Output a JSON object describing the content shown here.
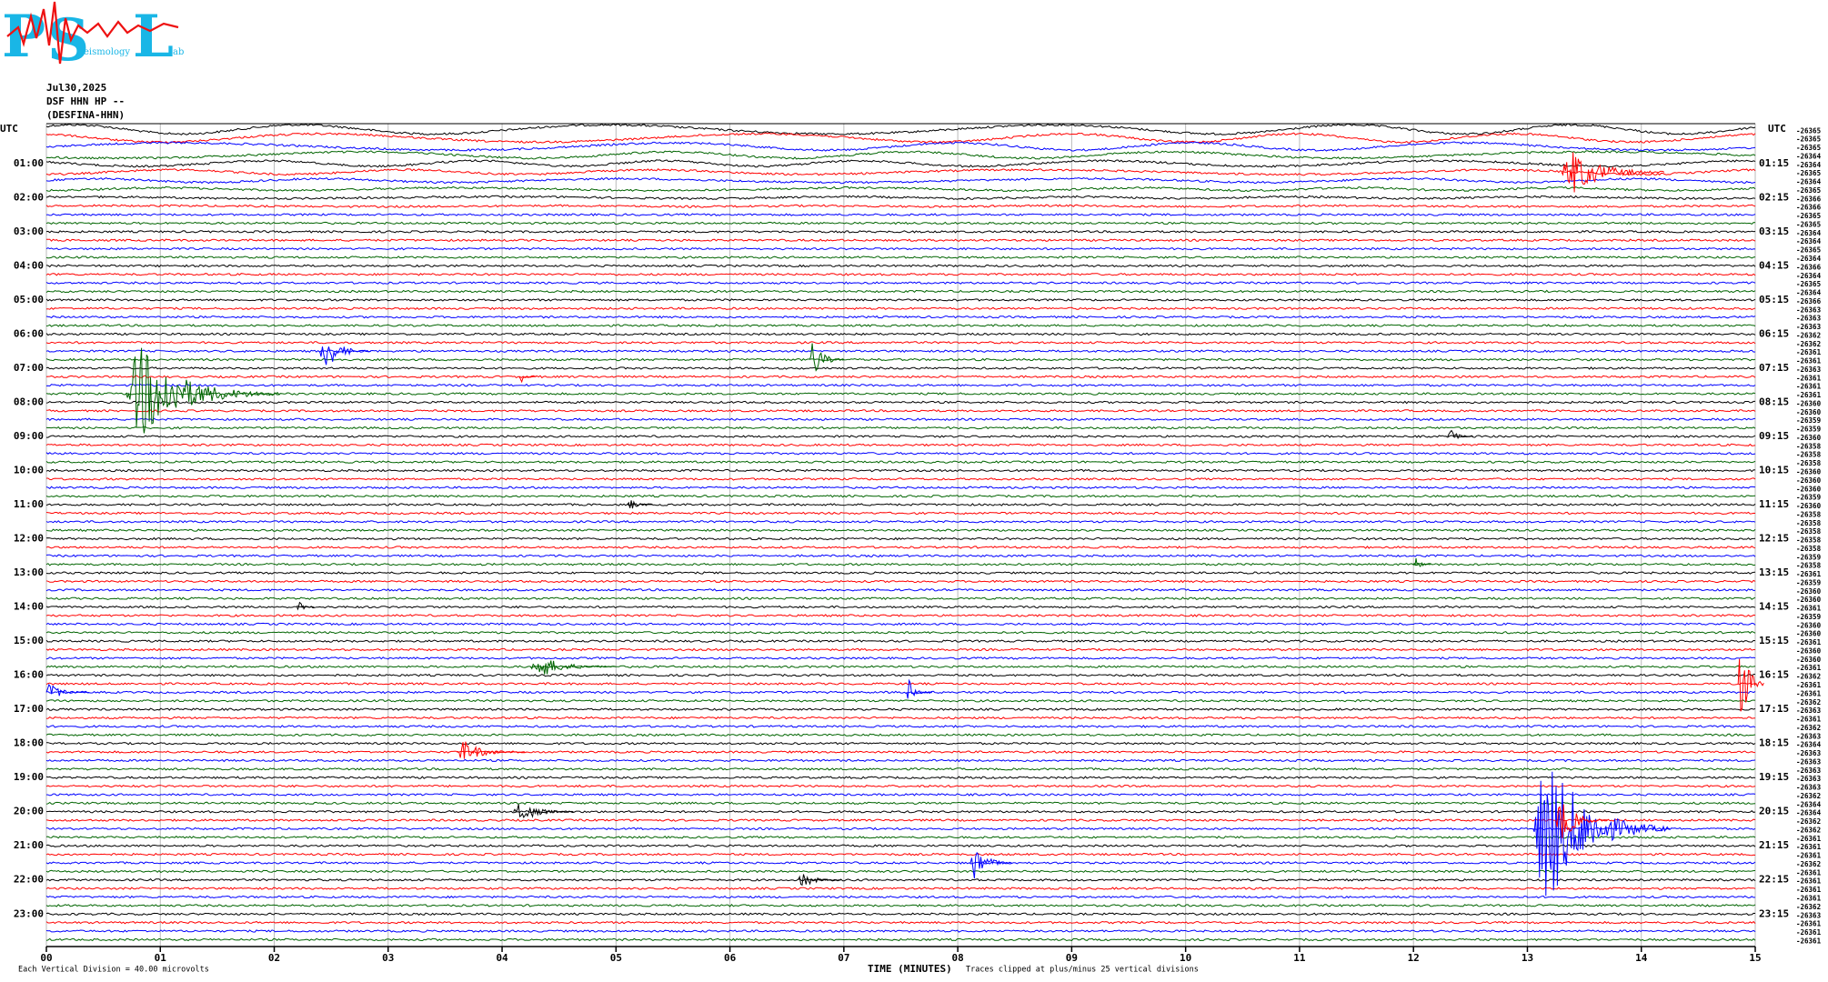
{
  "logo": {
    "letters": [
      "P",
      "S",
      "L"
    ],
    "sub": [
      "eismology",
      "ab"
    ]
  },
  "header": {
    "date": "Jul30,2025",
    "station": "DSF HHN HP --",
    "name": "(DESFINA-HHN)"
  },
  "chart_data": {
    "type": "helicorder",
    "utc_label": "UTC",
    "xlabel": "TIME (MINUTES)",
    "scale_note": "Each Vertical Division =  40.00 microvolts",
    "clip_note": "Traces clipped at plus/minus 25 vertical divisions",
    "xlim": [
      0,
      15
    ],
    "xticks": [
      {
        "value": 0,
        "label": "00"
      },
      {
        "value": 1,
        "label": "01"
      },
      {
        "value": 2,
        "label": "02"
      },
      {
        "value": 3,
        "label": "03"
      },
      {
        "value": 4,
        "label": "04"
      },
      {
        "value": 5,
        "label": "05"
      },
      {
        "value": 6,
        "label": "06"
      },
      {
        "value": 7,
        "label": "07"
      },
      {
        "value": 8,
        "label": "08"
      },
      {
        "value": 9,
        "label": "09"
      },
      {
        "value": 10,
        "label": "10"
      },
      {
        "value": 11,
        "label": "11"
      },
      {
        "value": 12,
        "label": "12"
      },
      {
        "value": 13,
        "label": "13"
      },
      {
        "value": 14,
        "label": "14"
      },
      {
        "value": 15,
        "label": "15"
      }
    ],
    "grid": true,
    "trace_colors": [
      "#000000",
      "#ff0000",
      "#0000ff",
      "#006400"
    ],
    "left_hour_labels": [
      "01:00",
      "02:00",
      "03:00",
      "04:00",
      "05:00",
      "06:00",
      "07:00",
      "08:00",
      "09:00",
      "10:00",
      "11:00",
      "12:00",
      "13:00",
      "14:00",
      "15:00",
      "16:00",
      "17:00",
      "18:00",
      "19:00",
      "20:00",
      "21:00",
      "22:00",
      "23:00"
    ],
    "right_hour_labels": [
      "01:15",
      "02:15",
      "03:15",
      "04:15",
      "05:15",
      "06:15",
      "07:15",
      "08:15",
      "09:15",
      "10:15",
      "11:15",
      "12:15",
      "13:15",
      "14:15",
      "15:15",
      "16:15",
      "17:15",
      "18:15",
      "19:15",
      "20:15",
      "21:15",
      "22:15",
      "23:15"
    ],
    "trace_offsets": [
      -26365,
      -26365,
      -26365,
      -26364,
      -26364,
      -26365,
      -26364,
      -26365,
      -26366,
      -26366,
      -26365,
      -26365,
      -26364,
      -26364,
      -26365,
      -26364,
      -26366,
      -26364,
      -26365,
      -26364,
      -26366,
      -26363,
      -26363,
      -26363,
      -26362,
      -26362,
      -26361,
      -26361,
      -26363,
      -26361,
      -26361,
      -26361,
      -26360,
      -26360,
      -26359,
      -26359,
      -26360,
      -26358,
      -26358,
      -26358,
      -26360,
      -26360,
      -26360,
      -26359,
      -26360,
      -26358,
      -26358,
      -26358,
      -26358,
      -26358,
      -26359,
      -26358,
      -26361,
      -26359,
      -26360,
      -26360,
      -26361,
      -26359,
      -26360,
      -26360,
      -26361,
      -26360,
      -26360,
      -26361,
      -26362,
      -26361,
      -26361,
      -26362,
      -26363,
      -26361,
      -26362,
      -26363,
      -26364,
      -26363,
      -26363,
      -26363,
      -26363,
      -26363,
      -26362,
      -26364,
      -26364,
      -26362,
      -26362,
      -26361,
      -26361,
      -26361,
      -26362,
      -26361,
      -26361,
      -26361,
      -26361,
      -26362,
      -26363,
      -26361,
      -26361,
      -26361
    ],
    "events": [
      {
        "row": 5,
        "minute": 13.3,
        "amplitude": 3,
        "duration": 0.6
      },
      {
        "row": 31,
        "minute": 0.7,
        "amplitude": 6,
        "duration": 0.9
      },
      {
        "row": 26,
        "minute": 2.4,
        "amplitude": 2.5,
        "duration": 0.3
      },
      {
        "row": 27,
        "minute": 6.7,
        "amplitude": 2.5,
        "duration": 0.2
      },
      {
        "row": 36,
        "minute": 12.3,
        "amplitude": 1,
        "duration": 0.15
      },
      {
        "row": 65,
        "minute": 14.85,
        "amplitude": 7,
        "duration": 0.15
      },
      {
        "row": 82,
        "minute": 13.05,
        "amplitude": 10,
        "duration": 0.8
      },
      {
        "row": 81,
        "minute": 13.25,
        "amplitude": 3,
        "duration": 0.3
      },
      {
        "row": 86,
        "minute": 8.1,
        "amplitude": 2.5,
        "duration": 0.25
      },
      {
        "row": 80,
        "minute": 4.1,
        "amplitude": 1.5,
        "duration": 0.35
      },
      {
        "row": 73,
        "minute": 3.6,
        "amplitude": 1.5,
        "duration": 0.4
      },
      {
        "row": 66,
        "minute": 7.55,
        "amplitude": 1.5,
        "duration": 0.15
      },
      {
        "row": 63,
        "minute": 4.25,
        "amplitude": 1.5,
        "duration": 0.5
      },
      {
        "row": 66,
        "minute": 0.0,
        "amplitude": 1.2,
        "duration": 0.25
      },
      {
        "row": 88,
        "minute": 6.6,
        "amplitude": 1,
        "duration": 0.25
      },
      {
        "row": 56,
        "minute": 2.2,
        "amplitude": 0.8,
        "duration": 0.1
      },
      {
        "row": 29,
        "minute": 4.15,
        "amplitude": 0.8,
        "duration": 0.1
      },
      {
        "row": 51,
        "minute": 12.0,
        "amplitude": 1,
        "duration": 0.1
      },
      {
        "row": 44,
        "minute": 5.1,
        "amplitude": 0.7,
        "duration": 0.15
      }
    ]
  }
}
